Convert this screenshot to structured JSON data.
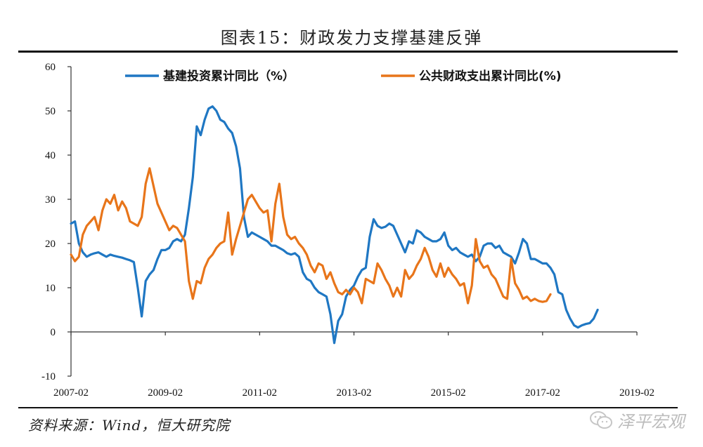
{
  "figure": {
    "title": "图表15：财政发力支撑基建反弹",
    "source": "资料来源：Wind，恒大研究院",
    "watermark": "泽平宏观",
    "watermark_icon": "wechat-icon"
  },
  "chart_data": {
    "type": "line",
    "title": "图表15：财政发力支撑基建反弹",
    "xlabel": "",
    "ylabel": "",
    "x_start": "2007-02",
    "x_end": "2019-02",
    "x_ticks": [
      "2007-02",
      "2009-02",
      "2011-02",
      "2013-02",
      "2015-02",
      "2017-02",
      "2019-02"
    ],
    "y_ticks": [
      60,
      50,
      40,
      30,
      20,
      10,
      0,
      -10
    ],
    "ylim": [
      -10,
      60
    ],
    "grid": false,
    "legend_position": "top",
    "series": [
      {
        "name": "基建投资累计同比（%）",
        "color": "#1f77c3",
        "points": [
          [
            "2007-02",
            24.5
          ],
          [
            "2007-03",
            25.0
          ],
          [
            "2007-04",
            20.0
          ],
          [
            "2007-05",
            18.0
          ],
          [
            "2007-06",
            17.0
          ],
          [
            "2007-07",
            17.5
          ],
          [
            "2007-08",
            17.8
          ],
          [
            "2007-09",
            18.0
          ],
          [
            "2007-10",
            17.5
          ],
          [
            "2007-11",
            17.0
          ],
          [
            "2007-12",
            17.5
          ],
          [
            "2008-01",
            17.2
          ],
          [
            "2008-02",
            17.0
          ],
          [
            "2008-03",
            16.8
          ],
          [
            "2008-04",
            16.5
          ],
          [
            "2008-05",
            16.2
          ],
          [
            "2008-06",
            15.8
          ],
          [
            "2008-07",
            10.0
          ],
          [
            "2008-08",
            3.5
          ],
          [
            "2008-09",
            11.5
          ],
          [
            "2008-10",
            13.0
          ],
          [
            "2008-11",
            14.0
          ],
          [
            "2008-12",
            16.5
          ],
          [
            "2009-01",
            18.5
          ],
          [
            "2009-02",
            18.5
          ],
          [
            "2009-03",
            19.0
          ],
          [
            "2009-04",
            20.5
          ],
          [
            "2009-05",
            21.0
          ],
          [
            "2009-06",
            20.5
          ],
          [
            "2009-07",
            22.0
          ],
          [
            "2009-08",
            28.0
          ],
          [
            "2009-09",
            35.0
          ],
          [
            "2009-10",
            46.5
          ],
          [
            "2009-11",
            44.5
          ],
          [
            "2009-12",
            48.0
          ],
          [
            "2010-01",
            50.5
          ],
          [
            "2010-02",
            51.0
          ],
          [
            "2010-03",
            50.0
          ],
          [
            "2010-04",
            48.0
          ],
          [
            "2010-05",
            47.5
          ],
          [
            "2010-06",
            46.0
          ],
          [
            "2010-07",
            45.0
          ],
          [
            "2010-08",
            42.0
          ],
          [
            "2010-09",
            37.0
          ],
          [
            "2010-10",
            26.0
          ],
          [
            "2010-11",
            21.5
          ],
          [
            "2010-12",
            22.5
          ],
          [
            "2011-01",
            22.0
          ],
          [
            "2011-02",
            21.5
          ],
          [
            "2011-03",
            21.0
          ],
          [
            "2011-04",
            20.5
          ],
          [
            "2011-05",
            19.5
          ],
          [
            "2011-06",
            19.5
          ],
          [
            "2011-07",
            19.0
          ],
          [
            "2011-08",
            18.5
          ],
          [
            "2011-09",
            17.8
          ],
          [
            "2011-10",
            17.5
          ],
          [
            "2011-11",
            17.8
          ],
          [
            "2011-12",
            17.0
          ],
          [
            "2012-01",
            13.5
          ],
          [
            "2012-02",
            12.0
          ],
          [
            "2012-03",
            11.5
          ],
          [
            "2012-04",
            10.0
          ],
          [
            "2012-05",
            9.0
          ],
          [
            "2012-06",
            8.5
          ],
          [
            "2012-07",
            8.0
          ],
          [
            "2012-08",
            4.0
          ],
          [
            "2012-09",
            -2.5
          ],
          [
            "2012-10",
            2.5
          ],
          [
            "2012-11",
            4.0
          ],
          [
            "2012-12",
            8.0
          ],
          [
            "2013-01",
            9.5
          ],
          [
            "2013-02",
            10.5
          ],
          [
            "2013-03",
            12.5
          ],
          [
            "2013-04",
            14.0
          ],
          [
            "2013-05",
            14.5
          ],
          [
            "2013-06",
            21.5
          ],
          [
            "2013-07",
            25.5
          ],
          [
            "2013-08",
            24.0
          ],
          [
            "2013-09",
            23.5
          ],
          [
            "2013-10",
            23.8
          ],
          [
            "2013-11",
            24.5
          ],
          [
            "2013-12",
            24.0
          ],
          [
            "2014-01",
            22.0
          ],
          [
            "2014-02",
            20.0
          ],
          [
            "2014-03",
            18.0
          ],
          [
            "2014-04",
            20.5
          ],
          [
            "2014-05",
            20.0
          ],
          [
            "2014-06",
            23.0
          ],
          [
            "2014-07",
            22.5
          ],
          [
            "2014-08",
            21.5
          ],
          [
            "2014-09",
            21.0
          ],
          [
            "2014-10",
            20.5
          ],
          [
            "2014-11",
            20.5
          ],
          [
            "2014-12",
            21.0
          ],
          [
            "2015-01",
            22.5
          ],
          [
            "2015-02",
            19.5
          ],
          [
            "2015-03",
            18.5
          ],
          [
            "2015-04",
            19.0
          ],
          [
            "2015-05",
            18.0
          ],
          [
            "2015-06",
            17.5
          ],
          [
            "2015-07",
            17.0
          ],
          [
            "2015-08",
            17.5
          ],
          [
            "2015-09",
            16.0
          ],
          [
            "2015-10",
            17.0
          ],
          [
            "2015-11",
            19.5
          ],
          [
            "2015-12",
            20.0
          ],
          [
            "2016-01",
            20.0
          ],
          [
            "2016-02",
            19.0
          ],
          [
            "2016-03",
            19.5
          ],
          [
            "2016-04",
            18.0
          ],
          [
            "2016-05",
            17.5
          ],
          [
            "2016-06",
            17.0
          ],
          [
            "2016-07",
            15.5
          ],
          [
            "2016-08",
            18.0
          ],
          [
            "2016-09",
            21.0
          ],
          [
            "2016-10",
            20.0
          ],
          [
            "2016-11",
            16.5
          ],
          [
            "2016-12",
            16.5
          ],
          [
            "2017-01",
            16.0
          ],
          [
            "2017-02",
            15.5
          ],
          [
            "2017-03",
            15.5
          ],
          [
            "2017-04",
            14.5
          ],
          [
            "2017-05",
            13.0
          ],
          [
            "2017-06",
            9.0
          ],
          [
            "2017-07",
            8.5
          ],
          [
            "2017-08",
            5.0
          ],
          [
            "2017-09",
            3.0
          ],
          [
            "2017-10",
            1.5
          ],
          [
            "2017-11",
            1.0
          ],
          [
            "2017-12",
            1.5
          ],
          [
            "2018-01",
            1.8
          ],
          [
            "2018-02",
            2.0
          ],
          [
            "2018-03",
            3.0
          ],
          [
            "2018-04",
            5.0
          ]
        ]
      },
      {
        "name": "公共财政支出累计同比(%)",
        "color": "#e8751a",
        "points": [
          [
            "2007-02",
            17.5
          ],
          [
            "2007-03",
            16.0
          ],
          [
            "2007-04",
            17.0
          ],
          [
            "2007-05",
            22.0
          ],
          [
            "2007-06",
            24.0
          ],
          [
            "2007-07",
            25.0
          ],
          [
            "2007-08",
            26.0
          ],
          [
            "2007-09",
            23.0
          ],
          [
            "2007-10",
            27.5
          ],
          [
            "2007-11",
            30.0
          ],
          [
            "2007-12",
            29.0
          ],
          [
            "2008-01",
            31.0
          ],
          [
            "2008-02",
            27.5
          ],
          [
            "2008-03",
            29.5
          ],
          [
            "2008-04",
            28.0
          ],
          [
            "2008-05",
            25.0
          ],
          [
            "2008-06",
            24.5
          ],
          [
            "2008-07",
            24.0
          ],
          [
            "2008-08",
            26.0
          ],
          [
            "2008-09",
            33.5
          ],
          [
            "2008-10",
            37.0
          ],
          [
            "2008-11",
            33.0
          ],
          [
            "2008-12",
            29.0
          ],
          [
            "2009-01",
            27.0
          ],
          [
            "2009-02",
            25.0
          ],
          [
            "2009-03",
            23.0
          ],
          [
            "2009-04",
            24.0
          ],
          [
            "2009-05",
            23.5
          ],
          [
            "2009-06",
            22.0
          ],
          [
            "2009-07",
            20.5
          ],
          [
            "2009-08",
            11.5
          ],
          [
            "2009-09",
            7.5
          ],
          [
            "2009-10",
            11.5
          ],
          [
            "2009-11",
            11.0
          ],
          [
            "2009-12",
            14.5
          ],
          [
            "2010-01",
            16.5
          ],
          [
            "2010-02",
            17.5
          ],
          [
            "2010-03",
            19.0
          ],
          [
            "2010-04",
            20.0
          ],
          [
            "2010-05",
            20.5
          ],
          [
            "2010-06",
            27.0
          ],
          [
            "2010-07",
            17.5
          ],
          [
            "2010-08",
            21.0
          ],
          [
            "2010-09",
            24.0
          ],
          [
            "2010-10",
            27.0
          ],
          [
            "2010-11",
            30.0
          ],
          [
            "2010-12",
            31.0
          ],
          [
            "2011-01",
            29.5
          ],
          [
            "2011-02",
            28.0
          ],
          [
            "2011-03",
            27.0
          ],
          [
            "2011-04",
            27.5
          ],
          [
            "2011-05",
            20.5
          ],
          [
            "2011-06",
            29.0
          ],
          [
            "2011-07",
            33.5
          ],
          [
            "2011-08",
            26.0
          ],
          [
            "2011-09",
            22.0
          ],
          [
            "2011-10",
            21.0
          ],
          [
            "2011-11",
            21.5
          ],
          [
            "2011-12",
            20.0
          ],
          [
            "2012-01",
            19.0
          ],
          [
            "2012-02",
            17.5
          ],
          [
            "2012-03",
            15.0
          ],
          [
            "2012-04",
            13.5
          ],
          [
            "2012-05",
            15.5
          ],
          [
            "2012-06",
            15.0
          ],
          [
            "2012-07",
            12.0
          ],
          [
            "2012-08",
            13.5
          ],
          [
            "2012-09",
            11.0
          ],
          [
            "2012-10",
            9.0
          ],
          [
            "2012-11",
            8.5
          ],
          [
            "2012-12",
            9.5
          ],
          [
            "2013-01",
            8.5
          ],
          [
            "2013-02",
            10.0
          ],
          [
            "2013-03",
            9.0
          ],
          [
            "2013-04",
            6.5
          ],
          [
            "2013-05",
            12.0
          ],
          [
            "2013-06",
            11.5
          ],
          [
            "2013-07",
            11.0
          ],
          [
            "2013-08",
            15.5
          ],
          [
            "2013-09",
            14.0
          ],
          [
            "2013-10",
            12.0
          ],
          [
            "2013-11",
            10.5
          ],
          [
            "2013-12",
            8.0
          ],
          [
            "2014-01",
            10.0
          ],
          [
            "2014-02",
            8.0
          ],
          [
            "2014-03",
            14.0
          ],
          [
            "2014-04",
            12.0
          ],
          [
            "2014-05",
            13.0
          ],
          [
            "2014-06",
            15.0
          ],
          [
            "2014-07",
            16.5
          ],
          [
            "2014-08",
            19.0
          ],
          [
            "2014-09",
            17.0
          ],
          [
            "2014-10",
            14.0
          ],
          [
            "2014-11",
            12.5
          ],
          [
            "2014-12",
            15.5
          ],
          [
            "2015-01",
            12.5
          ],
          [
            "2015-02",
            14.5
          ],
          [
            "2015-03",
            13.0
          ],
          [
            "2015-04",
            12.0
          ],
          [
            "2015-05",
            10.5
          ],
          [
            "2015-06",
            11.0
          ],
          [
            "2015-07",
            6.5
          ],
          [
            "2015-08",
            10.5
          ],
          [
            "2015-09",
            21.0
          ],
          [
            "2015-10",
            16.0
          ],
          [
            "2015-11",
            14.5
          ],
          [
            "2015-12",
            15.0
          ],
          [
            "2016-01",
            13.0
          ],
          [
            "2016-02",
            12.0
          ],
          [
            "2016-03",
            10.0
          ],
          [
            "2016-04",
            8.0
          ],
          [
            "2016-05",
            7.5
          ],
          [
            "2016-06",
            16.5
          ],
          [
            "2016-07",
            11.0
          ],
          [
            "2016-08",
            9.5
          ],
          [
            "2016-09",
            7.5
          ],
          [
            "2016-10",
            8.0
          ],
          [
            "2016-11",
            7.0
          ],
          [
            "2016-12",
            7.5
          ],
          [
            "2017-01",
            7.0
          ],
          [
            "2017-02",
            6.8
          ],
          [
            "2017-03",
            7.0
          ],
          [
            "2017-04",
            8.5
          ]
        ]
      }
    ]
  }
}
